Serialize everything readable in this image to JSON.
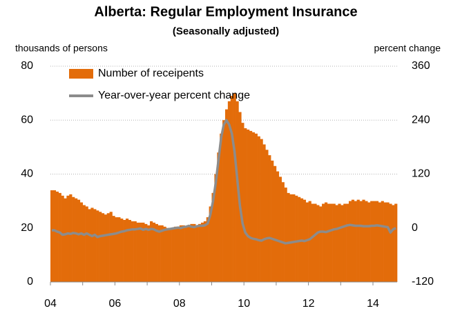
{
  "chart_data": {
    "type": "bar_line",
    "title": "Alberta: Regular Employment Insurance",
    "subtitle": "(Seasonally adjusted)",
    "y_label": "thousands of persons",
    "y2_label": "percent change",
    "categories": [
      "04",
      null,
      null,
      null,
      null,
      null,
      null,
      null,
      null,
      null,
      null,
      null,
      null,
      null,
      null,
      null,
      null,
      null,
      null,
      null,
      null,
      null,
      null,
      null,
      "06",
      null,
      null,
      null,
      null,
      null,
      null,
      null,
      null,
      null,
      null,
      null,
      null,
      null,
      null,
      null,
      null,
      null,
      null,
      null,
      null,
      null,
      null,
      null,
      "08",
      null,
      null,
      null,
      null,
      null,
      null,
      null,
      null,
      null,
      null,
      null,
      null,
      null,
      null,
      null,
      null,
      null,
      null,
      null,
      null,
      null,
      null,
      null,
      "10",
      null,
      null,
      null,
      null,
      null,
      null,
      null,
      null,
      null,
      null,
      null,
      null,
      null,
      null,
      null,
      null,
      null,
      null,
      null,
      null,
      null,
      null,
      null,
      "12",
      null,
      null,
      null,
      null,
      null,
      null,
      null,
      null,
      null,
      null,
      null,
      null,
      null,
      null,
      null,
      null,
      null,
      null,
      null,
      null,
      null,
      null,
      null,
      "14",
      null,
      null,
      null,
      null,
      null,
      null,
      null,
      null
    ],
    "series": [
      {
        "name": "Number of receipents",
        "color": "#e36c0a",
        "kind": "bar",
        "values": [
          34,
          34,
          33.5,
          33,
          32,
          31,
          32,
          32.5,
          31.5,
          31,
          30.5,
          29.5,
          28.5,
          28,
          27,
          27.5,
          27,
          26.5,
          26,
          25.5,
          25,
          25.5,
          26,
          24.5,
          24,
          24,
          23.5,
          23,
          23.5,
          23,
          22.5,
          22.5,
          22,
          22,
          22,
          21.5,
          21,
          22.5,
          22,
          21.5,
          21,
          21,
          20.5,
          20,
          19.5,
          20,
          20.5,
          20,
          21,
          21,
          20.5,
          21,
          21.5,
          21.5,
          21,
          21.5,
          22,
          22.5,
          24,
          28,
          33,
          40,
          48,
          55,
          60,
          64,
          67,
          69,
          70,
          67,
          63,
          59,
          57,
          56.5,
          56,
          55.5,
          55,
          54,
          53,
          51,
          49,
          47,
          45,
          43,
          41,
          39,
          37,
          35,
          33,
          32.5,
          32.5,
          32,
          31.5,
          31,
          30.5,
          29.5,
          30,
          29,
          29,
          28.5,
          28,
          29,
          29.5,
          29,
          29,
          29,
          28.5,
          29,
          28.5,
          29,
          29,
          30,
          30.5,
          30,
          30.5,
          30,
          30.5,
          30,
          29.5,
          30,
          30,
          30,
          29.5,
          30,
          29.5,
          29.5,
          29,
          28.5,
          29
        ]
      },
      {
        "name": "Year-over-year percent change",
        "color": "#8c8c8c",
        "kind": "line",
        "axis": "y2",
        "values": [
          -5,
          -5,
          -8,
          -10,
          -15,
          -14,
          -12,
          -13,
          -11,
          -12,
          -14,
          -12,
          -15,
          -12,
          -15,
          -18,
          -15,
          -20,
          -18,
          -17,
          -16,
          -15,
          -14,
          -13,
          -12,
          -10,
          -8,
          -7,
          -5,
          -4,
          -3,
          -3,
          -2,
          -1,
          -4,
          -2,
          -4,
          -2,
          -3,
          -6,
          -8,
          -6,
          -4,
          -3,
          -2,
          -1,
          0,
          1,
          0,
          2,
          3,
          5,
          3,
          2,
          4,
          5,
          5,
          6,
          10,
          30,
          60,
          100,
          150,
          200,
          230,
          240,
          230,
          210,
          170,
          110,
          50,
          10,
          -10,
          -18,
          -22,
          -24,
          -25,
          -27,
          -28,
          -25,
          -23,
          -22,
          -24,
          -26,
          -28,
          -30,
          -32,
          -34,
          -33,
          -32,
          -31,
          -30,
          -29,
          -28,
          -29,
          -27,
          -25,
          -20,
          -15,
          -10,
          -8,
          -8,
          -9,
          -7,
          -5,
          -3,
          -2,
          0,
          2,
          4,
          6,
          7,
          6,
          5,
          5,
          5,
          4,
          4,
          4,
          5,
          5,
          6,
          5,
          4,
          3,
          2,
          -10,
          -3,
          0
        ]
      }
    ],
    "ylim": [
      0,
      80
    ],
    "yticks": [
      0,
      20,
      40,
      60,
      80
    ],
    "y2lim": [
      -120,
      360
    ],
    "y2ticks": [
      -120,
      0,
      120,
      240,
      360
    ],
    "grid": true
  }
}
